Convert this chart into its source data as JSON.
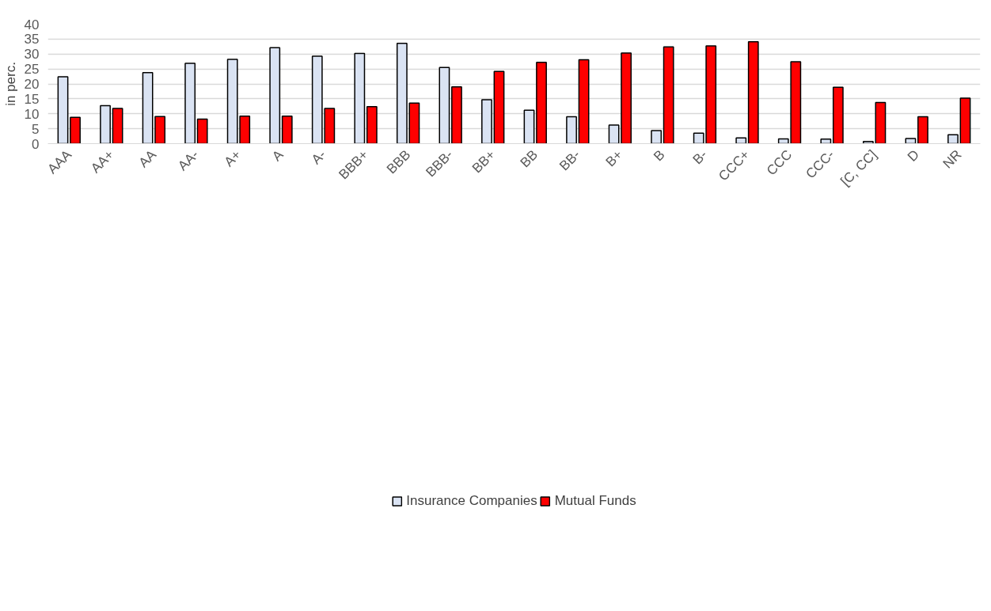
{
  "chart_data": {
    "type": "bar",
    "ylabel": "in perc.",
    "categories": [
      "AAA",
      "AA+",
      "AA",
      "AA-",
      "A+",
      "A",
      "A-",
      "BBB+",
      "BBB",
      "BBB-",
      "BB+",
      "BB",
      "BB-",
      "B+",
      "B",
      "B-",
      "CCC+",
      "CCC",
      "CCC-",
      "[C, CC]",
      "D",
      "NR"
    ],
    "series": [
      {
        "name": "Insurance Companies",
        "color": "#dae3f3",
        "values": [
          22.4,
          12.7,
          23.8,
          26.9,
          28.2,
          32.1,
          29.3,
          30.2,
          33.6,
          25.5,
          14.7,
          11.2,
          9.0,
          6.2,
          4.4,
          3.5,
          1.9,
          1.6,
          1.5,
          0.7,
          1.7,
          3.0
        ]
      },
      {
        "name": "Mutual Funds",
        "color": "#ff0000",
        "values": [
          8.8,
          11.8,
          9.1,
          8.2,
          9.2,
          9.2,
          11.8,
          12.4,
          13.6,
          19.0,
          24.2,
          27.2,
          28.1,
          30.3,
          32.4,
          32.7,
          34.1,
          27.4,
          18.9,
          13.8,
          9.0,
          15.2
        ]
      }
    ],
    "ylim": [
      0,
      40
    ],
    "yticks": [
      0,
      5,
      10,
      15,
      20,
      25,
      30,
      35,
      40
    ],
    "grid": "y",
    "legend": "bottom"
  }
}
